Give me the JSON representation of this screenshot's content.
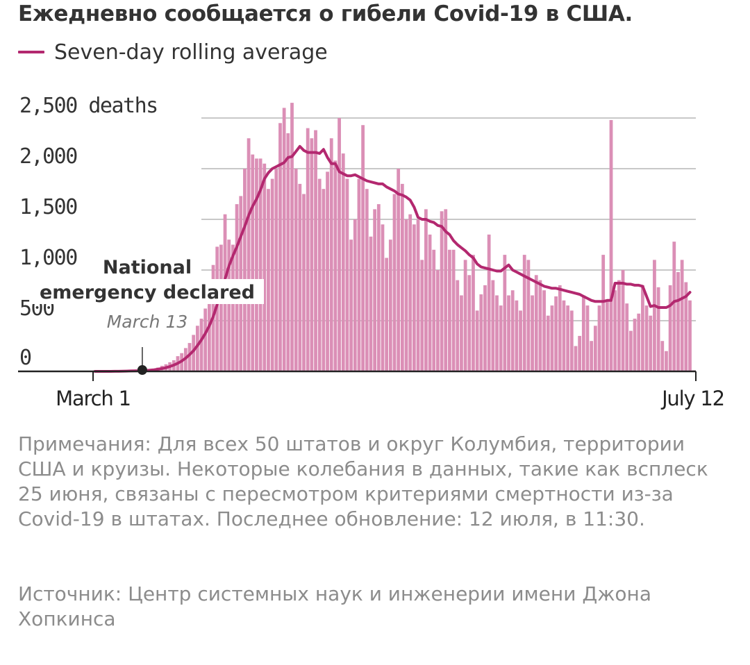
{
  "title": "Ежедневно сообщается о гибели Covid-19 в США.",
  "legend_label": "Seven-day rolling average",
  "notes": "Примечания: Для всех 50 штатов и округ Колумбия, территории США и круизы. Некоторые колебания в данных, такие как всплеск 25 июня, связаны с пересмотром критериями смертности из-за Covid-19 в штатах. Последнее обновление: 12 июля, в 11:30.",
  "source": "Источник: Центр системных наук и инженерии имени Джона Хопкинса",
  "colors": {
    "bar": "#db8fb6",
    "line": "#b3286f",
    "grid": "#c8c8c8",
    "axis": "#222222",
    "marker": "#222222"
  },
  "chart_data": {
    "type": "bar",
    "x_start_label": "March 1",
    "x_end_label": "July 12",
    "x_tick_labels": [
      "March 1",
      "July 12"
    ],
    "y_tick_labels": [
      "2,500 deaths",
      "2,000",
      "1,500",
      "1,000",
      "500",
      "0"
    ],
    "y_ticks": [
      2500,
      2000,
      1500,
      1000,
      500,
      0
    ],
    "ylim": [
      0,
      2550
    ],
    "grid": true,
    "series": [
      {
        "name": "",
        "kind": "bar",
        "values": [
          0,
          0,
          0,
          1,
          1,
          2,
          2,
          3,
          4,
          5,
          6,
          7,
          8,
          10,
          15,
          25,
          38,
          55,
          70,
          90,
          110,
          150,
          180,
          230,
          280,
          360,
          450,
          520,
          620,
          820,
          1050,
          1230,
          1250,
          1550,
          1300,
          1250,
          1650,
          1730,
          2000,
          2300,
          2140,
          2100,
          2100,
          2050,
          1800,
          1900,
          2000,
          2450,
          2600,
          2350,
          2650,
          2000,
          1850,
          1750,
          2400,
          2300,
          2380,
          1900,
          1800,
          1970,
          2300,
          2080,
          2500,
          2150,
          1900,
          1300,
          1500,
          1900,
          2430,
          1800,
          1330,
          1600,
          1650,
          1450,
          1120,
          1300,
          1750,
          2000,
          1850,
          1500,
          1550,
          1450,
          1500,
          1100,
          1600,
          1350,
          1200,
          1000,
          1580,
          1600,
          1200,
          1200,
          900,
          750,
          1100,
          950,
          1150,
          600,
          760,
          850,
          1350,
          900,
          750,
          650,
          1150,
          750,
          800,
          700,
          600,
          1150,
          1100,
          750,
          950,
          900,
          800,
          550,
          650,
          740,
          850,
          700,
          650,
          600,
          250,
          350,
          750,
          650,
          300,
          450,
          650,
          1150,
          700,
          2480,
          800,
          900,
          1000,
          670,
          400,
          520,
          570,
          850,
          650,
          550,
          1100,
          830,
          300,
          200,
          850,
          1280,
          980,
          1100,
          880,
          700,
          0
        ]
      },
      {
        "name": "Seven-day rolling average",
        "kind": "line",
        "values": [
          0,
          0,
          0,
          0,
          0,
          1,
          1,
          2,
          3,
          4,
          5,
          6,
          7,
          9,
          12,
          16,
          21,
          28,
          36,
          48,
          62,
          80,
          102,
          130,
          165,
          205,
          255,
          310,
          375,
          450,
          540,
          660,
          780,
          910,
          1040,
          1140,
          1230,
          1330,
          1430,
          1540,
          1630,
          1700,
          1790,
          1900,
          1960,
          2000,
          2020,
          2040,
          2060,
          2110,
          2120,
          2170,
          2220,
          2180,
          2160,
          2160,
          2160,
          2150,
          2190,
          2110,
          2050,
          2050,
          1970,
          1950,
          1930,
          1930,
          1940,
          1920,
          1900,
          1880,
          1870,
          1860,
          1850,
          1850,
          1820,
          1800,
          1780,
          1750,
          1740,
          1720,
          1690,
          1620,
          1520,
          1500,
          1500,
          1480,
          1470,
          1440,
          1430,
          1380,
          1350,
          1290,
          1250,
          1220,
          1190,
          1150,
          1120,
          1060,
          1030,
          1020,
          1010,
          1000,
          990,
          990,
          1020,
          1050,
          1000,
          980,
          960,
          940,
          920,
          900,
          880,
          860,
          840,
          830,
          820,
          820,
          810,
          800,
          790,
          780,
          770,
          760,
          740,
          720,
          700,
          690,
          690,
          690,
          700,
          700,
          870,
          870,
          870,
          860,
          860,
          850,
          850,
          840,
          740,
          640,
          650,
          630,
          630,
          630,
          650,
          690,
          700,
          720,
          740,
          780
        ]
      }
    ],
    "annotation": {
      "label": "National emergency declared",
      "sublabel": "March 13",
      "day_index": 12
    }
  }
}
